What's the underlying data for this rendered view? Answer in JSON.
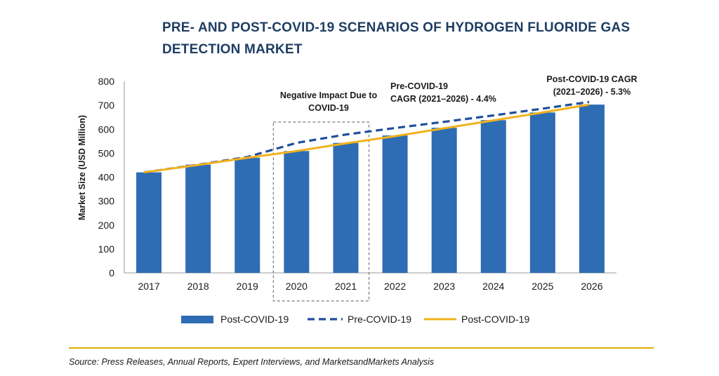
{
  "title": "PRE- AND POST-COVID-19 SCENARIOS OF HYDROGEN FLUORIDE GAS DETECTION MARKET",
  "source": "Source: Press Releases, Annual Reports, Expert Interviews, and MarketsandMarkets Analysis",
  "colors": {
    "bar": "#2e6db4",
    "pre_line": "#1f4e9c",
    "post_line": "#f2b21c",
    "divider": "#e0b000",
    "title": "#1f3d63"
  },
  "chart_data": {
    "type": "bar",
    "title": "PRE- AND POST-COVID-19 SCENARIOS OF HYDROGEN FLUORIDE GAS DETECTION MARKET",
    "ylabel": "Market Size (USD Million)",
    "xlabel": "",
    "ylim": [
      0,
      800
    ],
    "yticks": [
      0,
      100,
      200,
      300,
      400,
      500,
      600,
      700,
      800
    ],
    "categories": [
      "2017",
      "2018",
      "2019",
      "2020",
      "2021",
      "2022",
      "2023",
      "2024",
      "2025",
      "2026"
    ],
    "series": [
      {
        "name": "Post-COVID-19",
        "type": "bar",
        "values": [
          420,
          452,
          481,
          509,
          543,
          574,
          606,
          638,
          670,
          703
        ]
      },
      {
        "name": "Pre-COVID-19",
        "type": "line",
        "style": "dashed",
        "values": [
          420,
          452,
          484,
          543,
          578,
          605,
          631,
          658,
          686,
          714
        ]
      },
      {
        "name": "Post-COVID-19",
        "type": "line",
        "style": "solid",
        "values": [
          420,
          451,
          481,
          509,
          541,
          571,
          604,
          637,
          670,
          703
        ]
      }
    ],
    "annotations": [
      {
        "lines": [
          "Negative Impact Due to",
          "COVID-19"
        ]
      },
      {
        "lines": [
          "Pre-COVID-19",
          "CAGR (2021–2026) - 4.4%"
        ]
      },
      {
        "lines": [
          "Post-COVID-19 CAGR",
          "(2021–2026) - 5.3%"
        ]
      }
    ],
    "highlight_range": [
      "2020",
      "2021"
    ],
    "legend": [
      "Post-COVID-19",
      "Pre-COVID-19",
      "Post-COVID-19"
    ],
    "legend_position": "bottom",
    "grid": false
  }
}
